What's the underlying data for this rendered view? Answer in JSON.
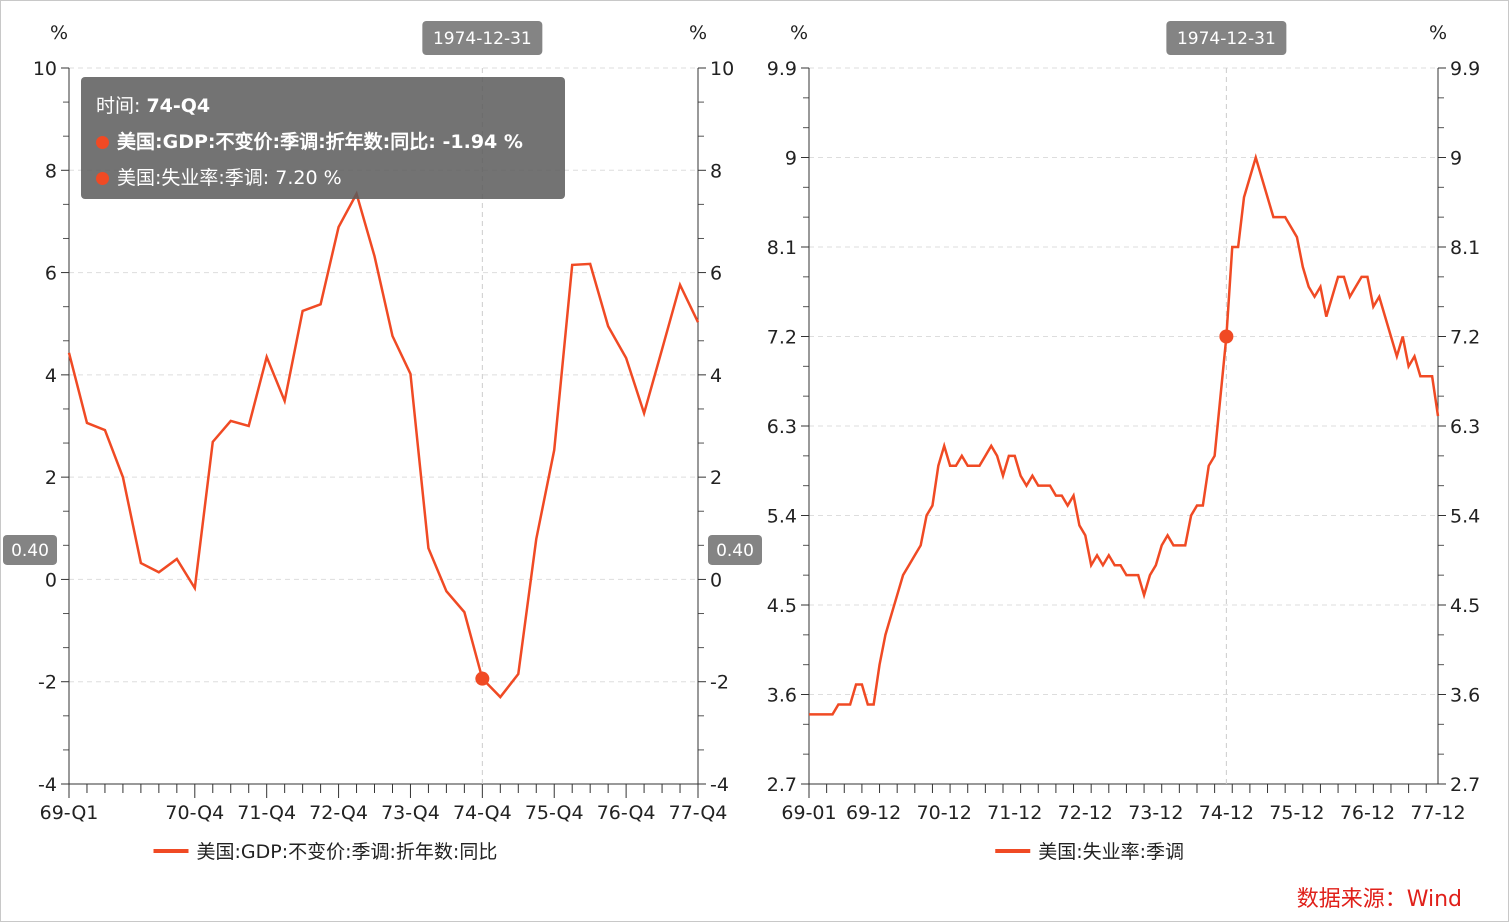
{
  "colors": {
    "series": "#f04a24",
    "source": "#e0201a"
  },
  "chart_data": [
    {
      "type": "line",
      "unit": "%",
      "ylim": [
        -4,
        10
      ],
      "yticks": [
        -4,
        -2,
        0,
        2,
        4,
        6,
        8,
        10
      ],
      "x": [
        "69-Q1",
        "69-Q2",
        "69-Q3",
        "69-Q4",
        "70-Q1",
        "70-Q2",
        "70-Q3",
        "70-Q4",
        "71-Q1",
        "71-Q2",
        "71-Q3",
        "71-Q4",
        "72-Q1",
        "72-Q2",
        "72-Q3",
        "72-Q4",
        "73-Q1",
        "73-Q2",
        "73-Q3",
        "73-Q4",
        "74-Q1",
        "74-Q2",
        "74-Q3",
        "74-Q4",
        "75-Q1",
        "75-Q2",
        "75-Q3",
        "75-Q4",
        "76-Q1",
        "76-Q2",
        "76-Q3",
        "76-Q4",
        "77-Q1",
        "77-Q2",
        "77-Q3",
        "77-Q4"
      ],
      "xtick_labels": [
        "69-Q1",
        "70-Q4",
        "71-Q4",
        "72-Q4",
        "73-Q4",
        "74-Q4",
        "75-Q4",
        "76-Q4",
        "77-Q4"
      ],
      "series": [
        {
          "name": "美国:GDP:不变价:季调:折年数:同比",
          "values": [
            4.43,
            3.06,
            2.92,
            2.0,
            0.32,
            0.14,
            0.4,
            -0.17,
            2.69,
            3.1,
            3.0,
            4.35,
            3.49,
            5.25,
            5.38,
            6.89,
            7.54,
            6.32,
            4.76,
            4.02,
            0.61,
            -0.23,
            -0.64,
            -1.94,
            -2.3,
            -1.85,
            0.79,
            2.53,
            6.15,
            6.17,
            4.95,
            4.33,
            3.25,
            4.5,
            5.76,
            5.03
          ]
        }
      ],
      "highlight_index": 23,
      "crosshair_value": "0.40",
      "crosshair_date": "1974-12-31"
    },
    {
      "type": "line",
      "unit": "%",
      "ylim": [
        2.7,
        9.9
      ],
      "yticks": [
        "2.7",
        "3.6",
        "4.5",
        "5.4",
        "6.3",
        "7.2",
        "8.1",
        "9",
        "9.9"
      ],
      "x_start": "69-01",
      "x_end": "77-12",
      "xtick_labels": [
        "69-01",
        "69-12",
        "70-12",
        "71-12",
        "72-12",
        "73-12",
        "74-12",
        "75-12",
        "76-12",
        "77-12"
      ],
      "series": [
        {
          "name": "美国:失业率:季调",
          "values": [
            3.4,
            3.4,
            3.4,
            3.4,
            3.4,
            3.5,
            3.5,
            3.5,
            3.7,
            3.7,
            3.5,
            3.5,
            3.9,
            4.2,
            4.4,
            4.6,
            4.8,
            4.9,
            5.0,
            5.1,
            5.4,
            5.5,
            5.9,
            6.1,
            5.9,
            5.9,
            6.0,
            5.9,
            5.9,
            5.9,
            6.0,
            6.1,
            6.0,
            5.8,
            6.0,
            6.0,
            5.8,
            5.7,
            5.8,
            5.7,
            5.7,
            5.7,
            5.6,
            5.6,
            5.5,
            5.6,
            5.3,
            5.2,
            4.9,
            5.0,
            4.9,
            5.0,
            4.9,
            4.9,
            4.8,
            4.8,
            4.8,
            4.6,
            4.8,
            4.9,
            5.1,
            5.2,
            5.1,
            5.1,
            5.1,
            5.4,
            5.5,
            5.5,
            5.9,
            6.0,
            6.6,
            7.2,
            8.1,
            8.1,
            8.6,
            8.8,
            9.0,
            8.8,
            8.6,
            8.4,
            8.4,
            8.4,
            8.3,
            8.2,
            7.9,
            7.7,
            7.6,
            7.7,
            7.4,
            7.6,
            7.8,
            7.8,
            7.6,
            7.7,
            7.8,
            7.8,
            7.5,
            7.6,
            7.4,
            7.2,
            7.0,
            7.2,
            6.9,
            7.0,
            6.8,
            6.8,
            6.8,
            6.4
          ]
        }
      ],
      "highlight_index": 71,
      "crosshair_date": "1974-12-31"
    }
  ],
  "tooltip": {
    "time_label": "时间: ",
    "time_value": "74-Q4",
    "row1": "美国:GDP:不变价:季调:折年数:同比: -1.94  %",
    "row2": "美国:失业率:季调: 7.20 %"
  },
  "source": "数据来源：Wind"
}
